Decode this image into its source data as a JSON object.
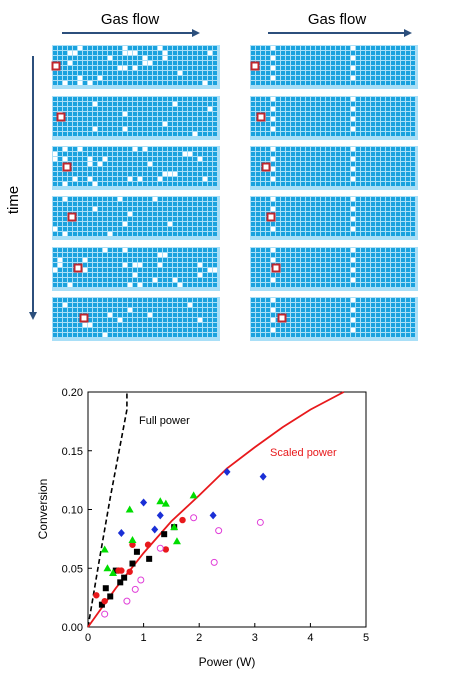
{
  "diagram": {
    "left_header": "Gas flow",
    "right_header": "Gas flow",
    "time_label": "time",
    "grid_color": "#36b6ee",
    "cell_color": "#1aa2de",
    "gap_color": "#a9dff7",
    "marker_color": "#c0262d"
  },
  "chart_data": {
    "type": "scatter",
    "xlabel": "Power (W)",
    "ylabel": "Conversion",
    "xlim": [
      0,
      5
    ],
    "ylim": [
      0,
      0.2
    ],
    "xticks": [
      "0",
      "1",
      "2",
      "3",
      "4",
      "5"
    ],
    "yticks": [
      "0.00",
      "0.05",
      "0.10",
      "0.15",
      "0.20"
    ],
    "annotations": [
      {
        "text": "Full power",
        "color": "#000000"
      },
      {
        "text": "Scaled power",
        "color": "#e8191c"
      }
    ],
    "lines": [
      {
        "style": "dashed",
        "color": "#000000",
        "x": [
          0,
          0.1,
          0.2,
          0.3,
          0.4,
          0.5,
          0.6,
          0.7,
          0.7
        ],
        "y": [
          0,
          0.028,
          0.056,
          0.083,
          0.11,
          0.135,
          0.16,
          0.185,
          0.2
        ]
      },
      {
        "style": "solid",
        "color": "#e8191c",
        "x": [
          0,
          0.5,
          1,
          1.5,
          2,
          2.5,
          3,
          3.5,
          4,
          4.6
        ],
        "y": [
          0,
          0.033,
          0.063,
          0.09,
          0.112,
          0.135,
          0.153,
          0.17,
          0.185,
          0.2
        ]
      }
    ],
    "series": [
      {
        "marker": "square",
        "color": "#000000",
        "x": [
          0.25,
          0.32,
          0.4,
          0.5,
          0.58,
          0.65,
          0.8,
          0.88,
          1.1,
          1.37,
          1.55
        ],
        "y": [
          0.019,
          0.033,
          0.026,
          0.048,
          0.038,
          0.042,
          0.054,
          0.064,
          0.058,
          0.079,
          0.085
        ]
      },
      {
        "marker": "circle",
        "color": "#e8191c",
        "x": [
          0.15,
          0.3,
          0.55,
          0.6,
          0.75,
          0.8,
          1.08,
          1.4,
          1.7
        ],
        "y": [
          0.027,
          0.022,
          0.048,
          0.048,
          0.047,
          0.07,
          0.07,
          0.066,
          0.091
        ]
      },
      {
        "marker": "triangle",
        "color": "#00dd00",
        "x": [
          0.3,
          0.35,
          0.45,
          0.75,
          0.8,
          1.3,
          1.4,
          1.55,
          1.6,
          1.9
        ],
        "y": [
          0.066,
          0.05,
          0.046,
          0.1,
          0.074,
          0.107,
          0.105,
          0.085,
          0.073,
          0.112
        ]
      },
      {
        "marker": "diamond",
        "color": "#1a2fd6",
        "x": [
          0.6,
          1.0,
          1.2,
          1.3,
          2.25,
          2.5,
          3.15
        ],
        "y": [
          0.08,
          0.106,
          0.083,
          0.095,
          0.095,
          0.132,
          0.128
        ]
      },
      {
        "marker": "open-circle",
        "color": "#e03ed8",
        "x": [
          0.3,
          0.7,
          0.85,
          0.95,
          1.3,
          1.9,
          2.27,
          2.35,
          3.1
        ],
        "y": [
          0.011,
          0.022,
          0.032,
          0.04,
          0.067,
          0.093,
          0.055,
          0.082,
          0.089
        ]
      }
    ]
  }
}
